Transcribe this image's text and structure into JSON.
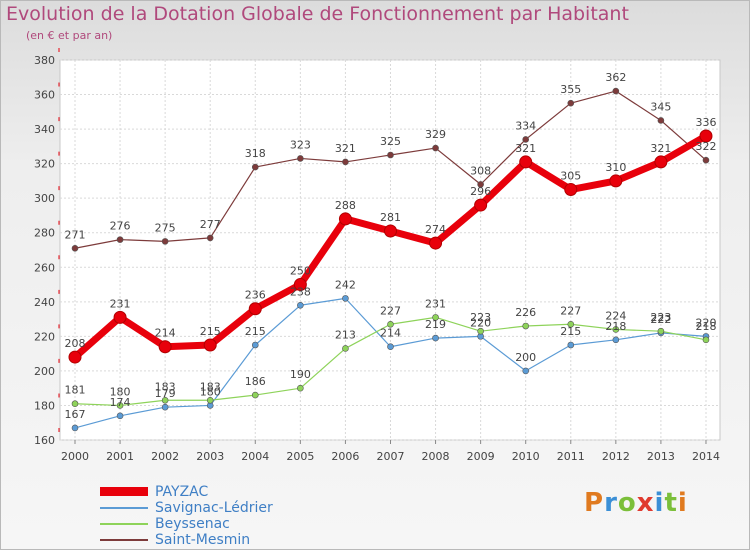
{
  "chart_data": {
    "type": "line",
    "title": "Evolution de la Dotation Globale de Fonctionnement par Habitant",
    "subtitle": "(en € et par an)",
    "x": [
      2000,
      2001,
      2002,
      2003,
      2004,
      2005,
      2006,
      2007,
      2008,
      2009,
      2010,
      2011,
      2012,
      2013,
      2014
    ],
    "ylim": [
      160,
      380
    ],
    "yticks": [
      160,
      180,
      200,
      220,
      240,
      260,
      280,
      300,
      320,
      340,
      360,
      380
    ],
    "grid": true,
    "legend_position": "bottom-left",
    "series": [
      {
        "name": "PAYZAC",
        "color": "#e8000b",
        "values": [
          208,
          231,
          214,
          215,
          236,
          250,
          288,
          281,
          274,
          296,
          321,
          305,
          310,
          321,
          336
        ]
      },
      {
        "name": "Savignac-Lédrier",
        "color": "#5b9bd5",
        "values": [
          167,
          174,
          179,
          180,
          215,
          238,
          242,
          214,
          219,
          220,
          200,
          215,
          218,
          222,
          220
        ]
      },
      {
        "name": "Beyssenac",
        "color": "#8ed35a",
        "values": [
          181,
          180,
          183,
          183,
          186,
          190,
          213,
          227,
          231,
          223,
          226,
          227,
          224,
          223,
          218
        ]
      },
      {
        "name": "Saint-Mesmin",
        "color": "#7d3b3b",
        "values": [
          271,
          276,
          275,
          277,
          318,
          323,
          321,
          325,
          329,
          308,
          334,
          355,
          362,
          345,
          322
        ]
      }
    ]
  },
  "logo": {
    "text": "Proxiti",
    "letters": [
      "P",
      "r",
      "o",
      "x",
      "i",
      "t",
      "i"
    ],
    "colors": [
      "#e07a1f",
      "#3b8fd6",
      "#7bbf3a",
      "#e03a2f",
      "#3b8fd6",
      "#7bbf3a",
      "#e07a1f"
    ]
  }
}
